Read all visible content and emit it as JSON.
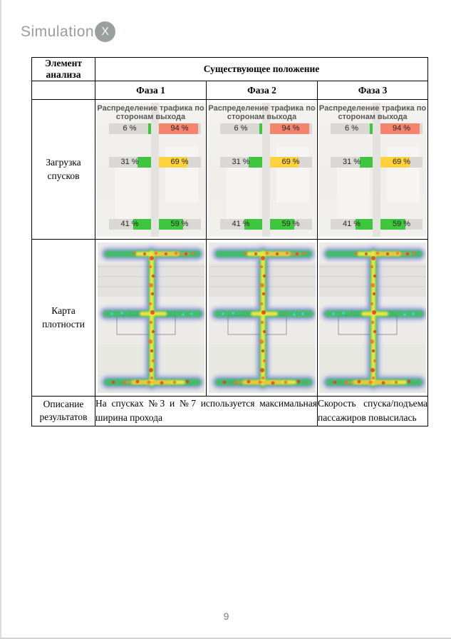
{
  "page": {
    "logo_text": "Simulation",
    "logo_badge": "X",
    "page_number": "9"
  },
  "table": {
    "header": {
      "element_column": "Элемент анализа",
      "group": "Существующее положение",
      "phases": [
        "Фаза 1",
        "Фаза 2",
        "Фаза 3"
      ]
    },
    "row_labels": {
      "loading": "Загрузка спусков",
      "density": "Карта плотности",
      "results": "Описание результатов"
    },
    "results": {
      "phase12": "На спусках №3 и №7 используется максимальная ширина прохода",
      "phase3": "Скорость спуска/подъема пассажиров повысилась"
    }
  },
  "chart_data": {
    "type": "bar",
    "title": "Распределение трафика по сторонам выхода",
    "panels": [
      "Фаза 1",
      "Фаза 2",
      "Фаза 3"
    ],
    "note": "identical paired-bar panel shown for every phase; each pair = left/right side share of one exit",
    "value_range": [
      0,
      100
    ],
    "bar_background": "#d9d8d5",
    "rows": [
      {
        "left_value": 6,
        "left_label": "6 %",
        "left_color": "#3ec73e",
        "right_value": 94,
        "right_label": "94 %",
        "right_color": "#f5836e"
      },
      {
        "left_value": 31,
        "left_label": "31 %",
        "left_color": "#3ec73e",
        "right_value": 69,
        "right_label": "69 %",
        "right_color": "#fdd23c"
      },
      {
        "left_value": 41,
        "left_label": "41 %",
        "left_color": "#3ec73e",
        "right_value": 59,
        "right_label": "59 %",
        "right_color": "#3ec73e"
      }
    ]
  },
  "density_map": {
    "palette": {
      "low": "#3c55cf",
      "mid": "#2fc24b",
      "high": "#f1ea3d",
      "peak": "#e23c20"
    }
  }
}
